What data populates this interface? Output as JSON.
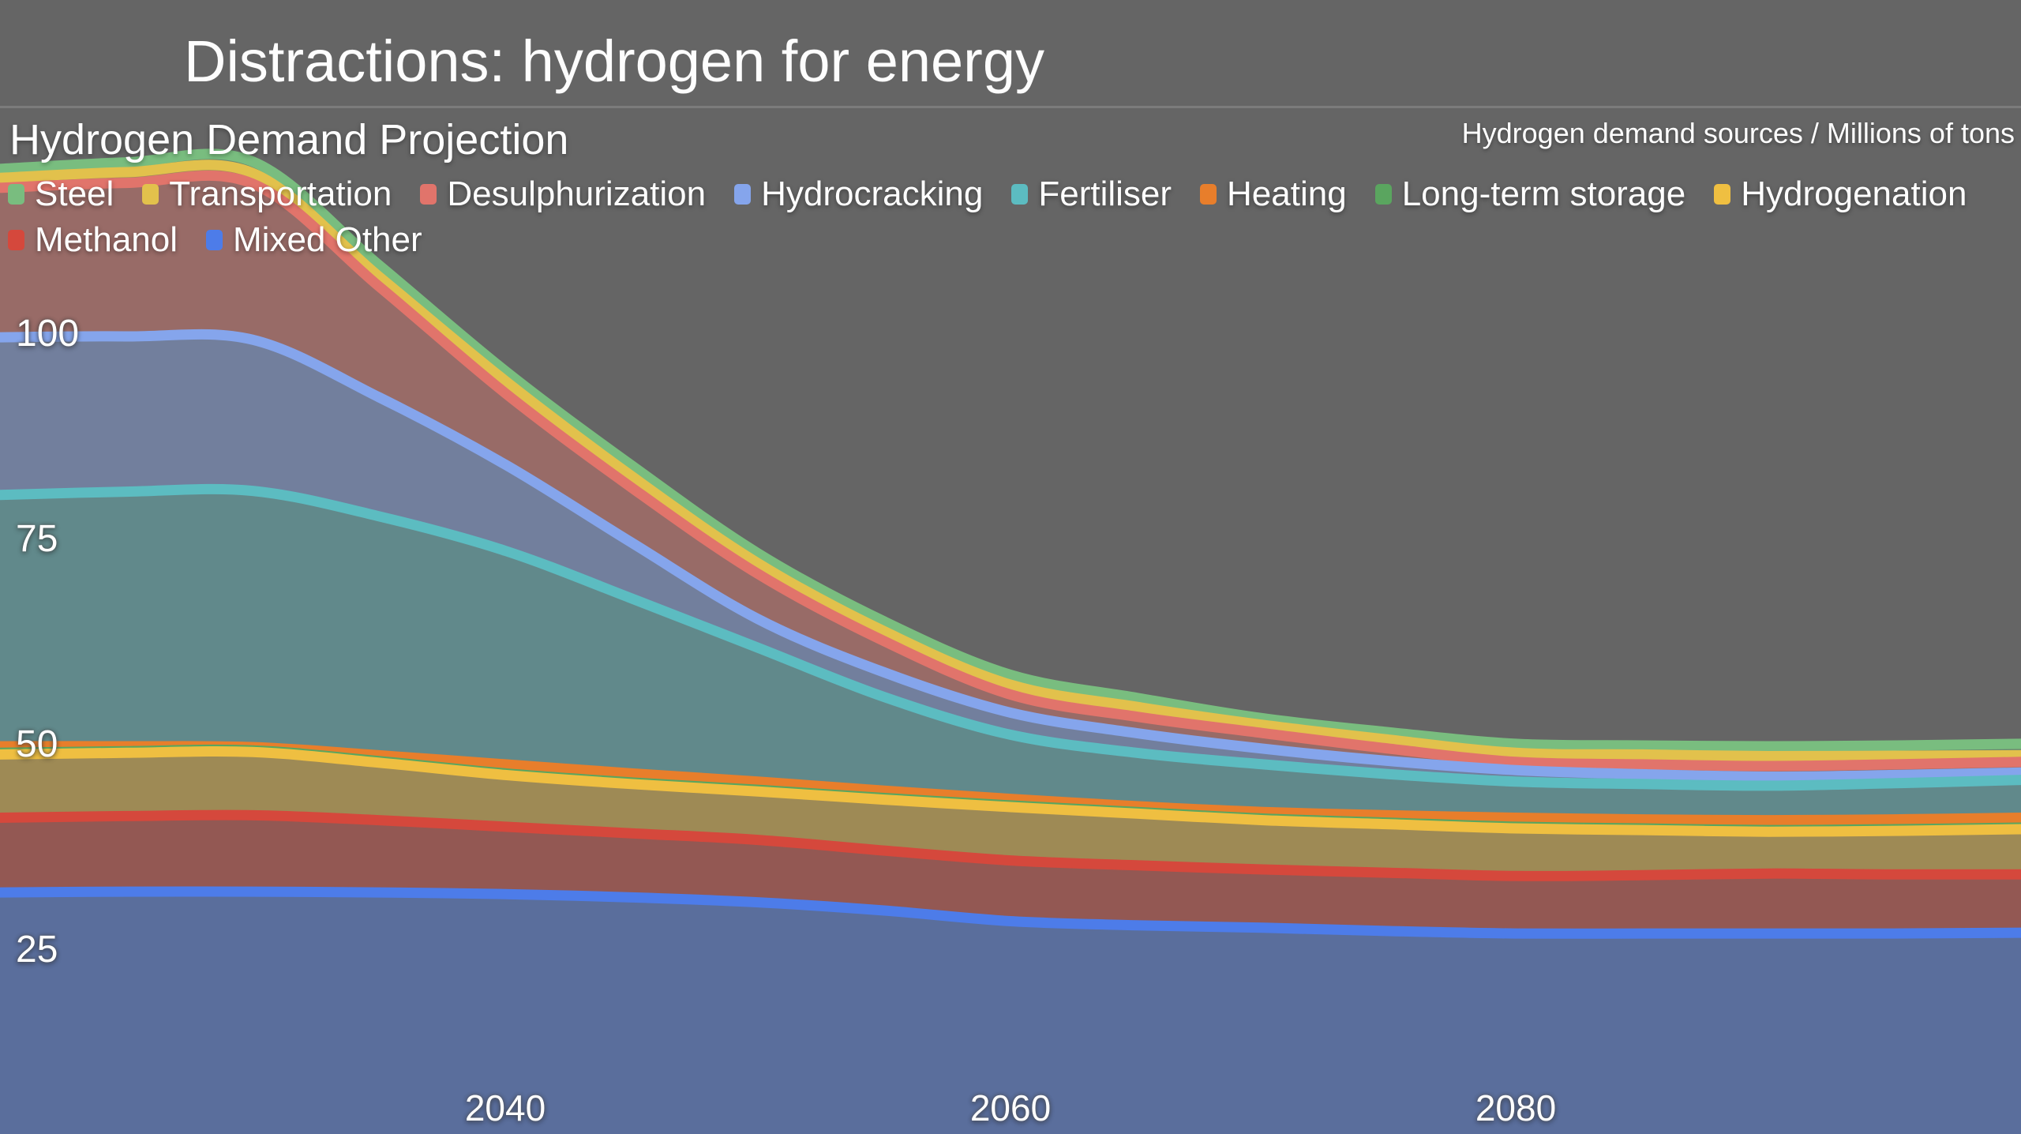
{
  "slide": {
    "title": "Distractions: hydrogen for energy"
  },
  "header": {
    "title": "Hydrogen Demand Projection",
    "unit_label": "Hydrogen demand sources / Millions of tons"
  },
  "colors": {
    "background": "#656565",
    "separator": "#7b7b7b",
    "text": "#ffffff"
  },
  "legend": {
    "rows": [
      [
        "Steel",
        "Transportation",
        "Desulphurization",
        "Hydrocracking",
        "Fertiliser",
        "Heating",
        "Long-term storage",
        "Hydrogenation"
      ],
      [
        "Methanol",
        "Mixed Other"
      ]
    ]
  },
  "chart_data": {
    "type": "area",
    "stacked": true,
    "title": "Hydrogen Demand Projection",
    "xlabel": "",
    "ylabel": "Hydrogen demand sources / Millions of tons",
    "xlim": [
      2020,
      2100
    ],
    "ylim": [
      0,
      140
    ],
    "x_ticks": [
      2040,
      2060,
      2080
    ],
    "y_ticks": [
      25,
      50,
      75,
      100
    ],
    "grid": false,
    "legend_position": "top-left",
    "x": [
      2020,
      2025,
      2030,
      2035,
      2040,
      2045,
      2050,
      2055,
      2060,
      2065,
      2070,
      2075,
      2080,
      2085,
      2090,
      2095,
      2100
    ],
    "stack_order": "bottom-to-top",
    "series": [
      {
        "name": "Mixed Other",
        "color": "#4d7ce9",
        "values": [
          32.2,
          32.3,
          32.3,
          32.2,
          32.0,
          31.6,
          31.0,
          30.0,
          28.7,
          28.2,
          27.9,
          27.5,
          27.2,
          27.2,
          27.2,
          27.2,
          27.3
        ]
      },
      {
        "name": "Methanol",
        "color": "#d5483c",
        "values": [
          9.1,
          9.2,
          9.3,
          8.8,
          8.2,
          7.8,
          7.6,
          7.3,
          7.4,
          7.3,
          7.1,
          7.1,
          7.0,
          7.1,
          7.3,
          7.2,
          7.1
        ]
      },
      {
        "name": "Hydrogenation",
        "color": "#efbf41",
        "values": [
          7.7,
          7.7,
          7.7,
          7.0,
          6.3,
          6.0,
          5.9,
          6.2,
          6.5,
          6.3,
          6.0,
          5.9,
          5.8,
          5.5,
          5.1,
          5.3,
          5.5
        ]
      },
      {
        "name": "Long-term storage",
        "color": "#5aa55f",
        "values": [
          0.2,
          0.2,
          0.2,
          0.2,
          0.2,
          0.2,
          0.2,
          0.2,
          0.2,
          0.2,
          0.2,
          0.2,
          0.2,
          0.2,
          0.2,
          0.2,
          0.2
        ]
      },
      {
        "name": "Heating",
        "color": "#e87e2b",
        "values": [
          0.8,
          0.6,
          0.4,
          0.7,
          1.1,
          1.1,
          1.0,
          0.9,
          0.8,
          0.7,
          0.8,
          0.9,
          1.1,
          1.1,
          1.2,
          1.2,
          1.2
        ]
      },
      {
        "name": "Fertiliser",
        "color": "#5cbcc1",
        "values": [
          30.6,
          31.0,
          31.2,
          29.1,
          26.0,
          21.3,
          16.3,
          11.4,
          7.8,
          6.5,
          5.8,
          5.0,
          4.4,
          4.3,
          4.2,
          4.4,
          4.6
        ]
      },
      {
        "name": "Hydrocracking",
        "color": "#85a5ec",
        "values": [
          19.2,
          18.9,
          18.4,
          14.5,
          10.5,
          6.8,
          3.5,
          3.0,
          2.7,
          2.4,
          1.9,
          1.6,
          1.4,
          1.2,
          1.1,
          1.0,
          0.9
        ]
      },
      {
        "name": "Desulphurization",
        "color": "#e1746b",
        "values": [
          18.2,
          18.7,
          19.0,
          13.5,
          8.7,
          6.7,
          5.5,
          3.8,
          2.2,
          2.0,
          1.9,
          1.5,
          1.0,
          1.2,
          1.3,
          1.3,
          1.3
        ]
      },
      {
        "name": "Transportation",
        "color": "#e2c14c",
        "values": [
          1.2,
          1.3,
          1.3,
          1.2,
          1.5,
          1.4,
          1.3,
          1.2,
          1.2,
          1.2,
          1.0,
          1.1,
          1.1,
          1.2,
          1.2,
          1.05,
          0.8
        ]
      },
      {
        "name": "Steel",
        "color": "#79bd7f",
        "values": [
          1.1,
          1.2,
          1.4,
          1.4,
          1.2,
          1.3,
          1.2,
          1.2,
          1.2,
          1.1,
          0.8,
          0.9,
          1.1,
          1.1,
          1.2,
          1.25,
          1.4
        ]
      }
    ]
  }
}
